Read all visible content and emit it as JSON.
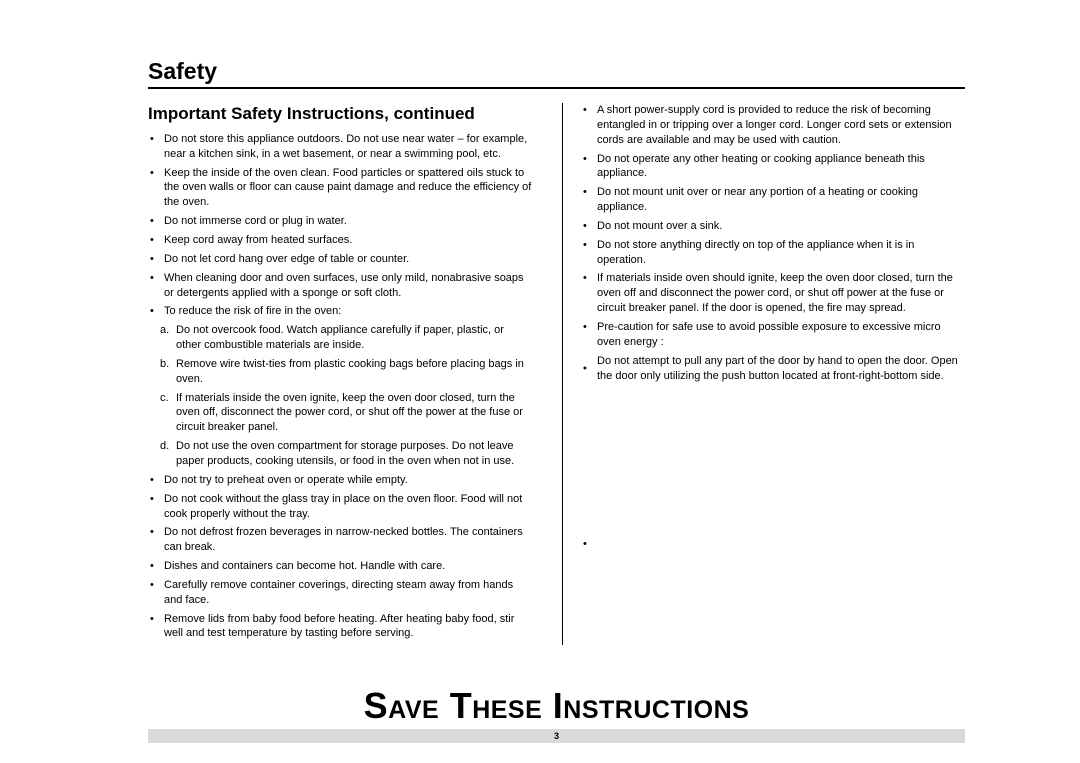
{
  "section_title": "Safety",
  "subheading": "Important Safety Instructions, continued",
  "left_column": [
    {
      "type": "bullet",
      "text": "Do not store this appliance outdoors. Do not use near water – for example, near a kitchen sink, in a wet basement, or near a swimming pool, etc."
    },
    {
      "type": "bullet",
      "text": "Keep the inside of the oven clean. Food particles or spattered oils stuck to the oven walls or floor can cause paint damage and reduce the efficiency of the oven."
    },
    {
      "type": "bullet",
      "text": "Do not immerse cord or plug in water."
    },
    {
      "type": "bullet",
      "text": "Keep cord away from heated surfaces."
    },
    {
      "type": "bullet",
      "text": "Do not let cord hang over edge of table or counter."
    },
    {
      "type": "bullet",
      "text": "When cleaning door and oven surfaces, use only mild, nonabrasive soaps or detergents applied with a sponge or soft cloth."
    },
    {
      "type": "bullet",
      "text": "To reduce the risk of fire in the oven:"
    },
    {
      "type": "sub",
      "letter": "a.",
      "text": "Do not overcook food. Watch appliance carefully if paper, plastic, or other combustible materials are inside."
    },
    {
      "type": "sub",
      "letter": "b.",
      "text": "Remove wire twist-ties from plastic cooking bags before placing bags in oven."
    },
    {
      "type": "sub",
      "letter": "c.",
      "text": "If materials inside the oven ignite, keep the oven door closed, turn the oven off, disconnect the power cord, or shut off the power at the fuse or circuit breaker panel."
    },
    {
      "type": "sub",
      "letter": "d.",
      "text": "Do not use the oven compartment for storage purposes. Do not leave paper products, cooking utensils, or food in the oven when not in use."
    },
    {
      "type": "bullet",
      "text": "Do not try to preheat oven or operate while empty."
    },
    {
      "type": "bullet",
      "text": "Do not cook without the glass tray in place on the oven floor. Food will not cook properly without the tray."
    },
    {
      "type": "bullet",
      "text": "Do not defrost frozen beverages in narrow-necked bottles. The containers can break."
    },
    {
      "type": "bullet",
      "text": "Dishes and containers can become hot. Handle with care."
    },
    {
      "type": "bullet",
      "text": "Carefully remove container coverings, directing steam away from hands and face."
    },
    {
      "type": "bullet",
      "text": "Remove lids from baby food before heating. After heating baby food, stir well and test temperature by tasting before serving."
    }
  ],
  "right_column": [
    {
      "type": "bullet",
      "text": "A short power-supply cord is provided to reduce the risk of becoming entangled in or tripping over a longer cord. Longer cord sets or extension cords are available and may be used with caution."
    },
    {
      "type": "bullet",
      "text": "Do not operate any other heating or cooking appliance beneath this appliance."
    },
    {
      "type": "bullet",
      "text": "Do not mount unit over or near any portion of a heating or cooking appliance."
    },
    {
      "type": "bullet",
      "text": "Do not mount over a sink."
    },
    {
      "type": "bullet",
      "text": "Do not store anything directly on top of the appliance when it is in operation."
    },
    {
      "type": "bullet",
      "text": "If materials inside oven should ignite, keep the oven door closed, turn the oven off and disconnect the power cord, or shut off power at the fuse or circuit breaker panel. If the door is opened, the fire may spread."
    },
    {
      "type": "bullet",
      "text": "Pre-caution for safe use to avoid possible exposure to excessive micro oven energy :"
    },
    {
      "type": "bullet-mid",
      "text": "Do not attempt to pull any part of the door by hand to open the door. Open the door only utilizing the push button located at front-right-bottom side."
    },
    {
      "type": "spacer"
    },
    {
      "type": "bullet-lone",
      "text": ""
    }
  ],
  "save_banner": "Save These Instructions",
  "page_number": "3"
}
